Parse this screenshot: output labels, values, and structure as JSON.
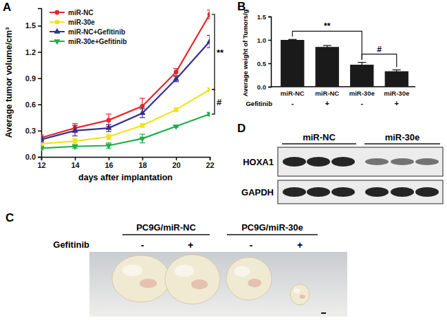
{
  "chart_data": [
    {
      "type": "line",
      "title": "A",
      "x_label": "days after implantation",
      "y_label": "Average tumor volume/cm³",
      "x": [
        12,
        14,
        16,
        18,
        20,
        22
      ],
      "xlim": [
        12,
        22
      ],
      "xticks": [
        12,
        14,
        16,
        18,
        20,
        22
      ],
      "ylim": [
        0,
        1.7
      ],
      "yticks": [
        {
          "value": 0,
          "label": "0.0"
        },
        0.3,
        0.6,
        0.9,
        1.2,
        1.5
      ],
      "legend": "upper left",
      "series": [
        {
          "name": "miR-NC",
          "color": "#e8262b",
          "marker": "circle",
          "values": [
            0.22,
            0.33,
            0.42,
            0.58,
            0.97,
            1.63
          ],
          "errors": [
            0.03,
            0.05,
            0.07,
            0.09,
            0.04,
            0.05
          ]
        },
        {
          "name": "miR-30e",
          "color": "#f2e21a",
          "marker": "square",
          "values": [
            0.15,
            0.18,
            0.23,
            0.36,
            0.54,
            0.77
          ],
          "errors": [
            0.02,
            0.03,
            0.03,
            0.02,
            0.02,
            0.02
          ]
        },
        {
          "name": "miR-NC+Gefitinib",
          "color": "#33308f",
          "marker": "triangle-up",
          "values": [
            0.2,
            0.3,
            0.33,
            0.5,
            0.89,
            1.32
          ],
          "errors": [
            0.03,
            0.06,
            0.04,
            0.05,
            0.03,
            0.07
          ]
        },
        {
          "name": "miR-30e+Gefitinib",
          "color": "#1fae4b",
          "marker": "triangle-down",
          "values": [
            0.1,
            0.12,
            0.13,
            0.21,
            0.35,
            0.49
          ],
          "errors": [
            0.02,
            0.02,
            0.03,
            0.05,
            0.01,
            0.02
          ]
        }
      ],
      "annotations": [
        {
          "text": "**"
        },
        {
          "text": "#"
        }
      ]
    },
    {
      "type": "bar",
      "title": "B",
      "y_label": "Average weight of Tumors/g",
      "categories": [
        "miR-NC",
        "miR-NC",
        "miR-30e",
        "miR-30e"
      ],
      "subcategory_title": "Gefitinib",
      "subcategories": [
        "-",
        "+",
        "-",
        "+"
      ],
      "values": [
        1.0,
        0.85,
        0.47,
        0.33
      ],
      "errors": [
        0.01,
        0.03,
        0.05,
        0.03
      ],
      "color": "#1a1a1a",
      "ylim": [
        0,
        1.5
      ],
      "yticks": [
        {
          "value": 0,
          "label": "0.0"
        },
        0.5,
        {
          "value": 1,
          "label": "1.0"
        },
        1.5
      ],
      "annotations": [
        {
          "text": "**"
        },
        {
          "text": "#"
        }
      ]
    }
  ],
  "photo": {
    "title": "C",
    "row_label": "Gefitinib",
    "groups": [
      "PC9G/miR-NC",
      "PC9G/miR-30e"
    ],
    "treatment": [
      "-",
      "+",
      "-",
      "+"
    ]
  },
  "blot": {
    "title": "D",
    "groups": [
      "miR-NC",
      "miR-30e"
    ],
    "rows": [
      "HOXA1",
      "GAPDH"
    ]
  }
}
